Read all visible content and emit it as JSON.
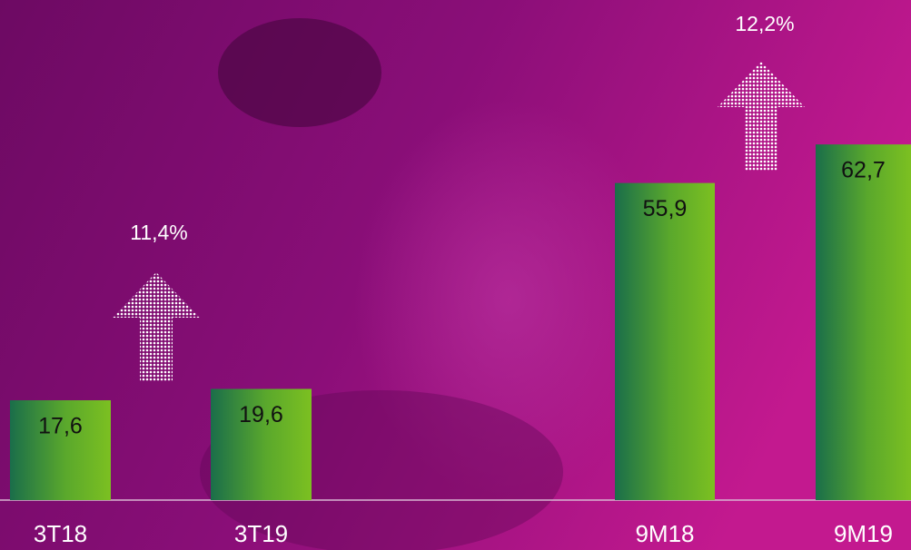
{
  "chart_data": {
    "type": "bar",
    "categories": [
      "3T18",
      "3T19",
      "9M18",
      "9M19"
    ],
    "values": [
      17.6,
      19.6,
      55.9,
      62.7
    ],
    "value_labels": [
      "17,6",
      "19,6",
      "55,9",
      "62,7"
    ],
    "annotations": [
      "11,4%",
      "12,2%"
    ]
  }
}
